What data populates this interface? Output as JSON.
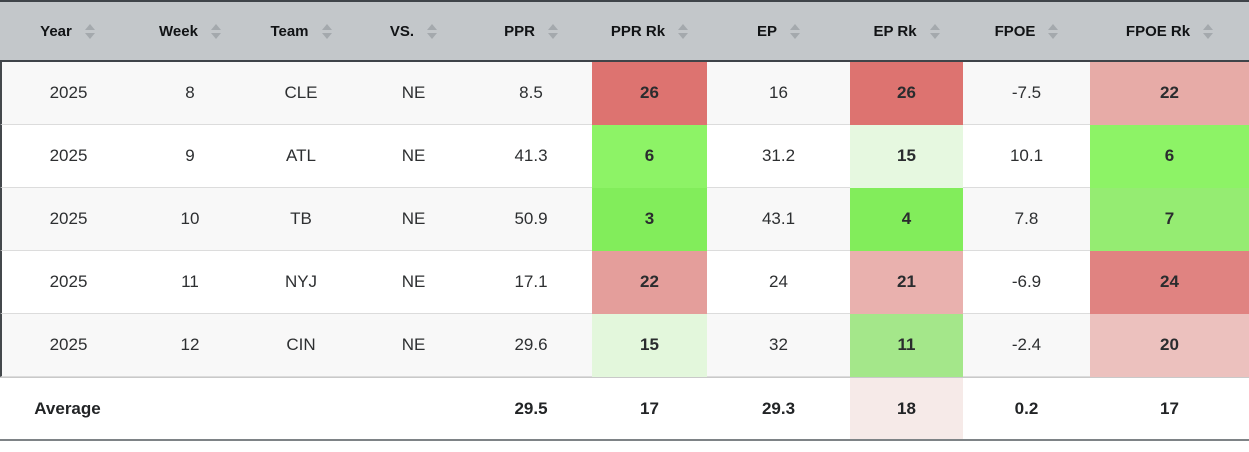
{
  "table": {
    "columns": {
      "year": {
        "label": "Year"
      },
      "week": {
        "label": "Week"
      },
      "team": {
        "label": "Team"
      },
      "vs": {
        "label": "VS."
      },
      "ppr": {
        "label": "PPR"
      },
      "ppr_rk": {
        "label": "PPR Rk"
      },
      "ep": {
        "label": "EP"
      },
      "ep_rk": {
        "label": "EP Rk"
      },
      "fpoe": {
        "label": "FPOE"
      },
      "fpoe_rk": {
        "label": "FPOE Rk"
      }
    },
    "rows": [
      {
        "year": "2025",
        "week": "8",
        "team": "CLE",
        "vs": "NE",
        "ppr": "8.5",
        "ppr_rk": "26",
        "ppr_rk_bg": "#dd7370",
        "ep": "16",
        "ep_rk": "26",
        "ep_rk_bg": "#dd7370",
        "fpoe": "-7.5",
        "fpoe_rk": "22",
        "fpoe_rk_bg": "#e7aba7"
      },
      {
        "year": "2025",
        "week": "9",
        "team": "ATL",
        "vs": "NE",
        "ppr": "41.3",
        "ppr_rk": "6",
        "ppr_rk_bg": "#8df366",
        "ep": "31.2",
        "ep_rk": "15",
        "ep_rk_bg": "#e6f8e0",
        "fpoe": "10.1",
        "fpoe_rk": "6",
        "fpoe_rk_bg": "#8df366"
      },
      {
        "year": "2025",
        "week": "10",
        "team": "TB",
        "vs": "NE",
        "ppr": "50.9",
        "ppr_rk": "3",
        "ppr_rk_bg": "#82ed5b",
        "ep": "43.1",
        "ep_rk": "4",
        "ep_rk_bg": "#82ed5b",
        "fpoe": "7.8",
        "fpoe_rk": "7",
        "fpoe_rk_bg": "#95ec72"
      },
      {
        "year": "2025",
        "week": "11",
        "team": "NYJ",
        "vs": "NE",
        "ppr": "17.1",
        "ppr_rk": "22",
        "ppr_rk_bg": "#e49e9b",
        "ep": "24",
        "ep_rk": "21",
        "ep_rk_bg": "#e9b1ae",
        "fpoe": "-6.9",
        "fpoe_rk": "24",
        "fpoe_rk_bg": "#e08381"
      },
      {
        "year": "2025",
        "week": "12",
        "team": "CIN",
        "vs": "NE",
        "ppr": "29.6",
        "ppr_rk": "15",
        "ppr_rk_bg": "#e3f7dc",
        "ep": "32",
        "ep_rk": "11",
        "ep_rk_bg": "#a4e78a",
        "fpoe": "-2.4",
        "fpoe_rk": "20",
        "fpoe_rk_bg": "#ecc1be"
      }
    ],
    "footer": {
      "label": "Average",
      "week": "",
      "team": "",
      "vs": "",
      "ppr": "29.5",
      "ppr_rk": "17",
      "ep": "29.3",
      "ep_rk": "18",
      "ep_rk_bg": "#f6eae8",
      "fpoe": "0.2",
      "fpoe_rk": "17"
    },
    "colors": {
      "header_bg": "#c3c7ca",
      "rank_best_green": "#82ed5b",
      "rank_worst_red": "#dd7370",
      "row_stripe": "#f8f8f8",
      "border_dark": "#3f4449"
    }
  }
}
